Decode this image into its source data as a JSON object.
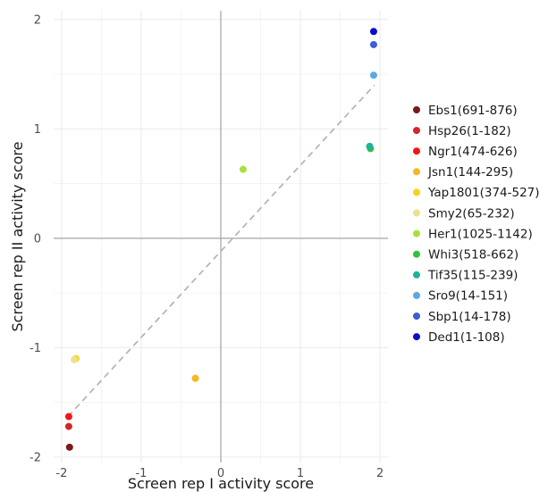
{
  "chart_data": {
    "type": "scatter",
    "xlabel": "Screen rep I activity score",
    "ylabel": "Screen rep II activity score",
    "xlim": [
      -2.1,
      2.1
    ],
    "ylim": [
      -2.05,
      2.08
    ],
    "x_ticks": [
      -2,
      -1,
      0,
      1,
      2
    ],
    "y_ticks": [
      -2,
      -1,
      0,
      1,
      2
    ],
    "grid": true,
    "zero_lines": true,
    "fit_line": {
      "style": "dashed",
      "color": "#b3b3b3",
      "from": [
        -1.92,
        -1.63
      ],
      "to": [
        1.93,
        1.4
      ]
    },
    "legend_position": "right",
    "points": [
      {
        "label": "Ebs1(691-876)",
        "color": "#7a1a1a",
        "x": -1.9,
        "y": -1.91
      },
      {
        "label": "Hsp26(1-182)",
        "color": "#d1262b",
        "x": -1.91,
        "y": -1.72
      },
      {
        "label": "Ngr1(474-626)",
        "color": "#f01616",
        "x": -1.91,
        "y": -1.63
      },
      {
        "label": "Jsn1(144-295)",
        "color": "#f7b71f",
        "x": -0.32,
        "y": -1.28
      },
      {
        "label": "Yap1801(374-527)",
        "color": "#f5d21c",
        "x": -1.82,
        "y": -1.1
      },
      {
        "label": "Smy2(65-232)",
        "color": "#ede18c",
        "x": -1.84,
        "y": -1.11
      },
      {
        "label": "Her1(1025-1142)",
        "color": "#a8e03a",
        "x": 0.28,
        "y": 0.63
      },
      {
        "label": "Whi3(518-662)",
        "color": "#33c13a",
        "x": 1.88,
        "y": 0.82
      },
      {
        "label": "Tif35(115-239)",
        "color": "#1fb29a",
        "x": 1.87,
        "y": 0.84
      },
      {
        "label": "Sro9(14-151)",
        "color": "#5ba8e6",
        "x": 1.92,
        "y": 1.49
      },
      {
        "label": "Sbp1(14-178)",
        "color": "#3a5ed4",
        "x": 1.92,
        "y": 1.77
      },
      {
        "label": "Ded1(1-108)",
        "color": "#0d0dcc",
        "x": 1.92,
        "y": 1.89
      }
    ]
  }
}
